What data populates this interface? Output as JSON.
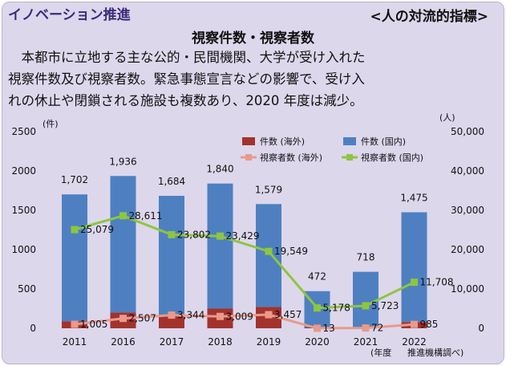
{
  "header": {
    "category": "イノベーション推進",
    "indicator": "<人の対流的指標>"
  },
  "title": "視察件数・視察者数",
  "description": [
    "　本都市に立地する主な公的・民間機関、大学が受け入れた",
    "視察件数及び視察者数。緊急事態宣言などの影響で、受け入",
    "れの休止や閉鎖される施設も複数あり、2020 年度は減少。"
  ],
  "chart_data": {
    "type": "bar",
    "categories": [
      "2011",
      "2016",
      "2017",
      "2018",
      "2019",
      "2020",
      "2021",
      "2022"
    ],
    "bar_totals": [
      1702,
      1936,
      1684,
      1840,
      1579,
      472,
      718,
      1475
    ],
    "bar_total_labels": [
      "1,702",
      "1,936",
      "1,684",
      "1,840",
      "1,579",
      "472",
      "718",
      "1,475"
    ],
    "series": [
      {
        "name": "件数 (海外)",
        "kind": "bar",
        "axis": "left",
        "color": "#a3322d",
        "values": [
          90,
          200,
          160,
          250,
          270,
          10,
          5,
          80
        ]
      },
      {
        "name": "件数 (国内)",
        "kind": "bar",
        "axis": "left",
        "color": "#4e80c1",
        "values": [
          1612,
          1736,
          1524,
          1590,
          1309,
          462,
          713,
          1395
        ]
      },
      {
        "name": "視察者数 (海外)",
        "kind": "line",
        "axis": "right",
        "color": "#e89a8c",
        "values": [
          1005,
          2507,
          3344,
          3009,
          3457,
          13,
          72,
          985
        ],
        "labels": [
          "1,005",
          "2,507",
          "3,344",
          "3,009",
          "3,457",
          "13",
          "72",
          "985"
        ]
      },
      {
        "name": "視察者数 (国内)",
        "kind": "line",
        "axis": "right",
        "color": "#8dc63f",
        "values": [
          25079,
          28611,
          23802,
          23429,
          19549,
          5178,
          5723,
          11708
        ],
        "labels": [
          "25,079",
          "28,611",
          "23,802",
          "23,429",
          "19,549",
          "5,178",
          "5,723",
          "11,708"
        ]
      }
    ],
    "y_left": {
      "unit": "(件)",
      "min": 0,
      "max": 2500,
      "ticks": [
        "0",
        "500",
        "1000",
        "1500",
        "2000",
        "2500"
      ]
    },
    "y_right": {
      "unit": "(人)",
      "min": 0,
      "max": 50000,
      "ticks": [
        "0",
        "10,000",
        "20,000",
        "30,000",
        "40,000",
        "50,000"
      ]
    },
    "x_unit": "(年度",
    "source": "推進機構調べ)",
    "legend_placement": "top-right",
    "grid": false
  }
}
